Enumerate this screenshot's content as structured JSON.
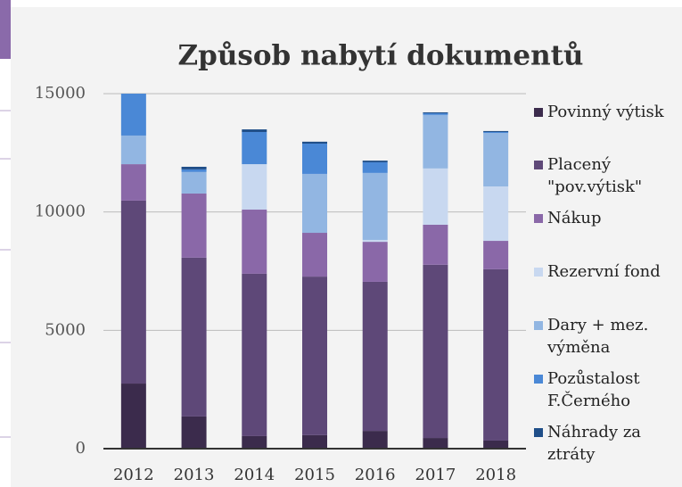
{
  "chart_data": {
    "type": "stacked_bar",
    "title": "Způsob nabytí dokumentů",
    "categories": [
      "2012",
      "2013",
      "2014",
      "2015",
      "2016",
      "2017",
      "2018"
    ],
    "series": [
      {
        "name": "Povinný výtisk",
        "color": "#3b2b4c",
        "values": [
          2750,
          1360,
          530,
          570,
          750,
          450,
          340
        ]
      },
      {
        "name": "Placený \"pov.výtisk\"",
        "color": "#5e4878",
        "values": [
          7730,
          6710,
          6860,
          6700,
          6300,
          7320,
          7240
        ]
      },
      {
        "name": "Nákup",
        "color": "#8a68a8",
        "values": [
          1540,
          2710,
          2710,
          1850,
          1690,
          1690,
          1200
        ]
      },
      {
        "name": "Rezervní fond",
        "color": "#c8d8f0",
        "values": [
          0,
          0,
          1920,
          0,
          80,
          2380,
          2300
        ]
      },
      {
        "name": "Dary + mez. výměna",
        "color": "#92b6e2",
        "values": [
          1210,
          910,
          0,
          2490,
          2830,
          2260,
          2260
        ]
      },
      {
        "name": "Pozůstalost F.Černého",
        "color": "#4a88d6",
        "values": [
          1770,
          110,
          1360,
          1280,
          450,
          70,
          40
        ]
      },
      {
        "name": "Náhrady za ztráty",
        "color": "#1f4e88",
        "values": [
          0,
          110,
          110,
          80,
          70,
          40,
          40
        ]
      }
    ],
    "ylim": [
      0,
      15000
    ],
    "yticks": [
      0,
      5000,
      10000,
      15000
    ],
    "grid": true,
    "legend": "right"
  }
}
